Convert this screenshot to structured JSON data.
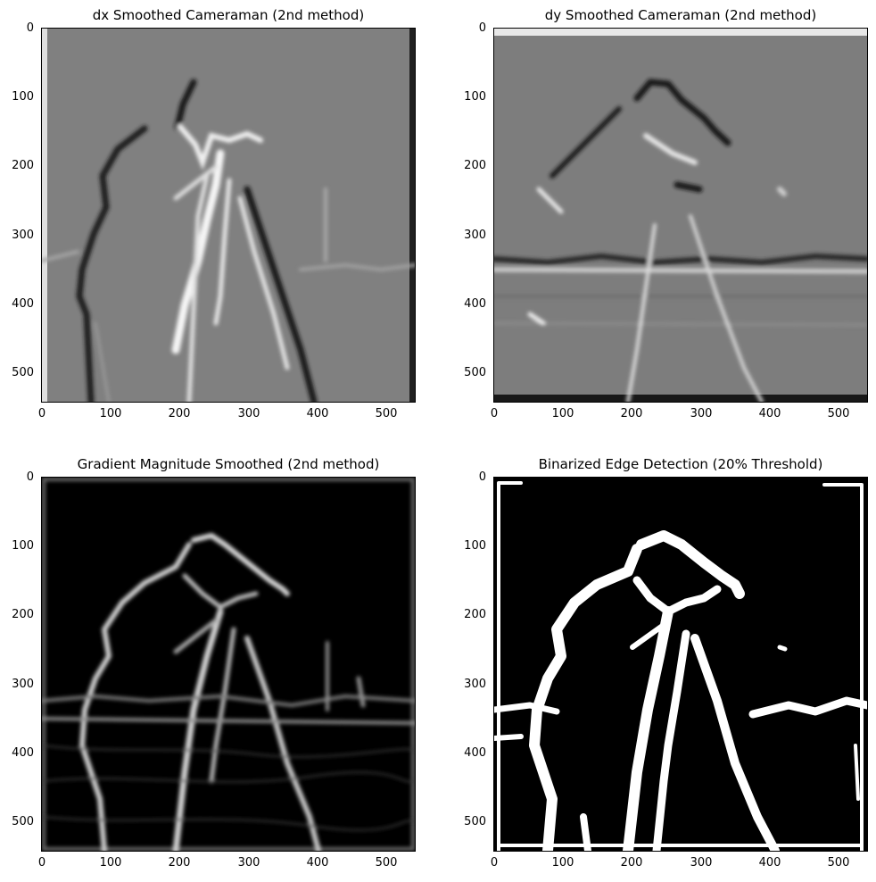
{
  "panels": [
    {
      "title": "dx Smoothed Cameraman (2nd method)",
      "x_ticks": [
        "0",
        "100",
        "200",
        "300",
        "400",
        "500"
      ],
      "y_ticks": [
        "0",
        "100",
        "200",
        "300",
        "400",
        "500"
      ],
      "background": "#808080"
    },
    {
      "title": "dy Smoothed Cameraman (2nd method)",
      "x_ticks": [
        "0",
        "100",
        "200",
        "300",
        "400",
        "500"
      ],
      "y_ticks": [
        "0",
        "100",
        "200",
        "300",
        "400",
        "500"
      ],
      "background": "#7d7d7d"
    },
    {
      "title": "Gradient Magnitude Smoothed (2nd method)",
      "x_ticks": [
        "0",
        "100",
        "200",
        "300",
        "400",
        "500"
      ],
      "y_ticks": [
        "0",
        "100",
        "200",
        "300",
        "400",
        "500"
      ],
      "background": "#000000"
    },
    {
      "title": "Binarized Edge Detection (20% Threshold)",
      "x_ticks": [
        "0",
        "100",
        "200",
        "300",
        "400",
        "500"
      ],
      "y_ticks": [
        "0",
        "100",
        "200",
        "300",
        "400",
        "500"
      ],
      "background": "#000000"
    }
  ]
}
